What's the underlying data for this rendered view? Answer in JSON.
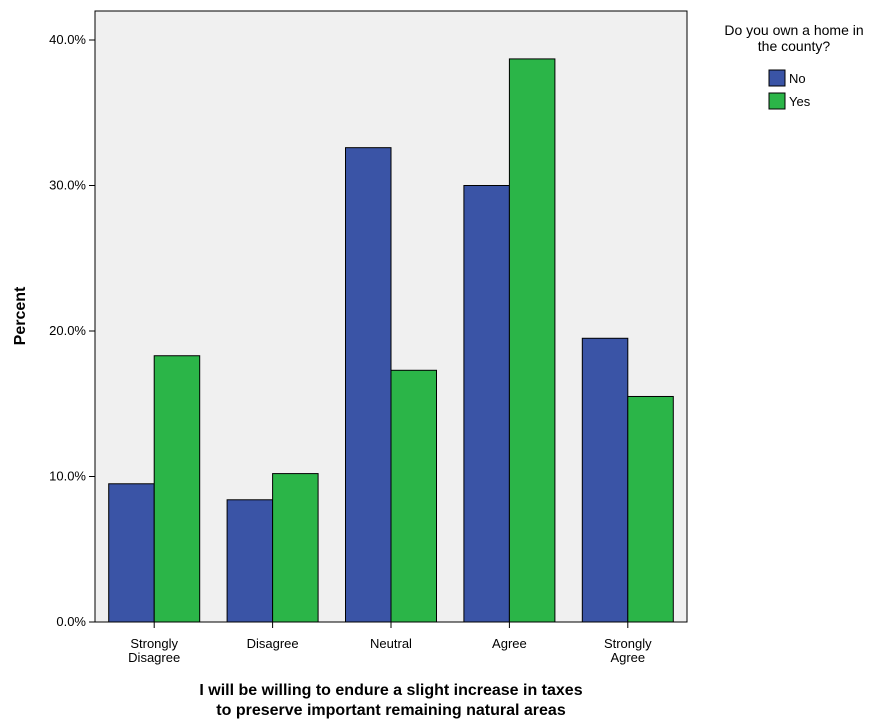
{
  "chart_data": {
    "type": "bar",
    "categories": [
      [
        "Strongly",
        "Disagree"
      ],
      [
        "Disagree"
      ],
      [
        "Neutral"
      ],
      [
        "Agree"
      ],
      [
        "Strongly",
        "Agree"
      ]
    ],
    "series": [
      {
        "name": "No",
        "color": "#3a54a6",
        "values": [
          9.5,
          8.4,
          32.6,
          30.0,
          19.5
        ]
      },
      {
        "name": "Yes",
        "color": "#2bb548",
        "values": [
          18.3,
          10.2,
          17.3,
          38.7,
          15.5
        ]
      }
    ],
    "ylabel": "Percent",
    "xlabel": [
      "I will be willing to endure a slight increase in taxes",
      "to preserve important remaining natural areas"
    ],
    "ylim": [
      0,
      40
    ],
    "yticks": [
      0,
      10,
      20,
      30,
      40
    ],
    "ytick_labels": [
      "0.0%",
      "10.0%",
      "20.0%",
      "30.0%",
      "40.0%"
    ],
    "legend": {
      "title": [
        "Do you own a home in",
        "the county?"
      ],
      "placement": "top-right"
    },
    "plot_background": "#f0f0f0",
    "grid": false
  }
}
